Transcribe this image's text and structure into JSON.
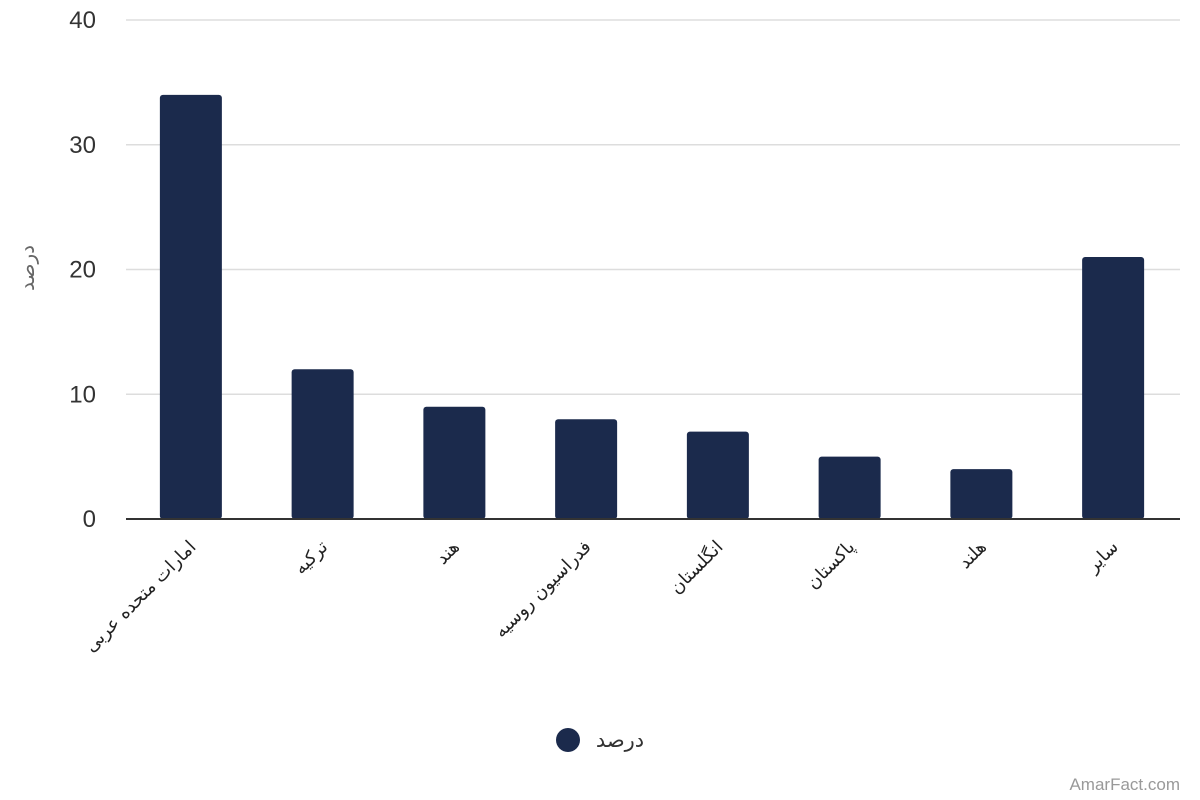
{
  "chart_data": {
    "type": "bar",
    "categories": [
      "امارات متحده عربی",
      "ترکیه",
      "هند",
      "فدراسیون روسیه",
      "انگلستان",
      "پاکستان",
      "هلند",
      "سایر"
    ],
    "series": [
      {
        "name": "درصد",
        "values": [
          34,
          12,
          9,
          8,
          7,
          5,
          4,
          21
        ]
      }
    ],
    "ylabel": "درصد",
    "ylim": [
      0,
      40
    ],
    "yticks": [
      0,
      10,
      20,
      30,
      40
    ],
    "grid": true,
    "legend_position": "bottom-center",
    "bar_color": "#1b2a4c"
  },
  "watermark": "AmarFact.com"
}
